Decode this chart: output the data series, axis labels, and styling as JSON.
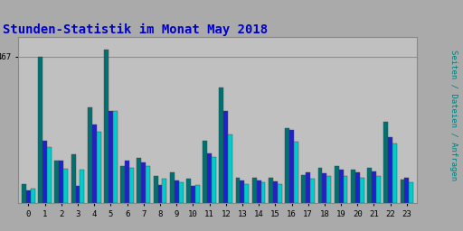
{
  "title": "Stunden-Statistik im Monat May 2018",
  "title_color": "#0000cc",
  "title_fontsize": 10,
  "ylabel": "Seiten / Dateien / Anfragen",
  "ylabel_color": "#008080",
  "ylabel_fontsize": 6.5,
  "background_color": "#aaaaaa",
  "plot_bg_color": "#c0c0c0",
  "hours": [
    0,
    1,
    2,
    3,
    4,
    5,
    6,
    7,
    8,
    9,
    10,
    11,
    12,
    13,
    14,
    15,
    16,
    17,
    18,
    19,
    20,
    21,
    22,
    23
  ],
  "seiten": [
    60,
    467,
    135,
    155,
    305,
    490,
    120,
    145,
    88,
    100,
    78,
    200,
    370,
    82,
    82,
    82,
    240,
    90,
    112,
    118,
    108,
    112,
    260,
    75
  ],
  "dateien": [
    42,
    200,
    135,
    55,
    250,
    295,
    135,
    130,
    58,
    72,
    55,
    160,
    295,
    72,
    72,
    70,
    235,
    100,
    95,
    108,
    98,
    102,
    210,
    82
  ],
  "anfragen": [
    47,
    178,
    110,
    108,
    228,
    295,
    113,
    118,
    78,
    68,
    58,
    148,
    218,
    62,
    68,
    62,
    195,
    78,
    88,
    88,
    82,
    88,
    190,
    68
  ],
  "seiten_color": "#007070",
  "dateien_color": "#2020cc",
  "anfragen_color": "#00cccc",
  "ylim": [
    0,
    530
  ],
  "ytick_val": 467,
  "ytick_label": "467",
  "grid_color": "#909090",
  "bar_width": 0.27,
  "border_color": "#888888"
}
